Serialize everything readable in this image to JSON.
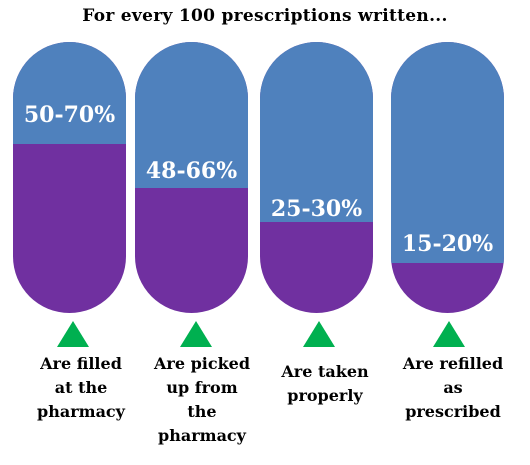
{
  "title": "For every 100 prescriptions written...",
  "colors": {
    "top": "#4f81bd",
    "fill": "#7030a0",
    "triangle": "#00b050"
  },
  "chart_data": {
    "type": "bar",
    "title": "For every 100 prescriptions written...",
    "categories": [
      "Are filled at the pharmacy",
      "Are picked up from the pharmacy",
      "Are taken properly",
      "Are refilled as prescribed"
    ],
    "range_labels": [
      "50-70%",
      "48-66%",
      "25-30%",
      "15-20%"
    ],
    "ranges": [
      [
        50,
        70
      ],
      [
        48,
        66
      ],
      [
        25,
        30
      ],
      [
        15,
        20
      ]
    ],
    "ylim": [
      0,
      100
    ]
  },
  "labels": [
    [
      "Are filled",
      "at the",
      "pharmacy"
    ],
    [
      "Are picked",
      "up from",
      "the",
      "pharmacy"
    ],
    [
      "Are taken",
      "properly"
    ],
    [
      "Are refilled",
      "as",
      "prescribed"
    ]
  ]
}
